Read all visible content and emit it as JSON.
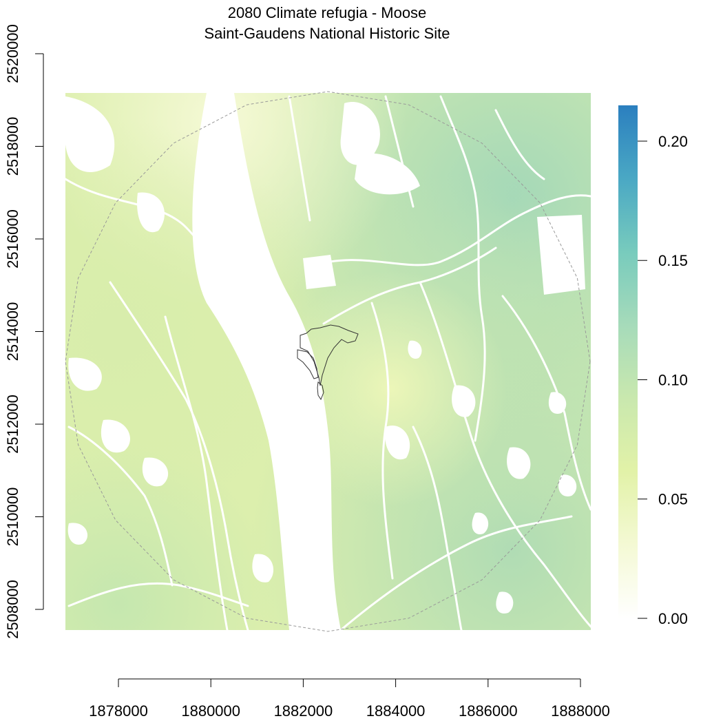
{
  "title": "2080 Climate refugia - Moose",
  "subtitle": "Saint-Gaudens National Historic Site",
  "x_axis": {
    "min": 1877000,
    "max": 1888000,
    "ticks": [
      {
        "value": 1878000,
        "label": "1878000"
      },
      {
        "value": 1880000,
        "label": "1880000"
      },
      {
        "value": 1882000,
        "label": "1882000"
      },
      {
        "value": 1884000,
        "label": "1884000"
      },
      {
        "value": 1886000,
        "label": "1886000"
      },
      {
        "value": 1888000,
        "label": "1888000"
      }
    ]
  },
  "y_axis": {
    "min": 2507500,
    "max": 2519100,
    "ticks": [
      {
        "value": 2508000,
        "label": "2508000"
      },
      {
        "value": 2510000,
        "label": "2510000"
      },
      {
        "value": 2512000,
        "label": "2512000"
      },
      {
        "value": 2514000,
        "label": "2514000"
      },
      {
        "value": 2516000,
        "label": "2516000"
      },
      {
        "value": 2518000,
        "label": "2518000"
      },
      {
        "value": 2520000,
        "label": "2520000"
      }
    ]
  },
  "legend": {
    "min": 0.0,
    "max": 0.215,
    "ticks": [
      {
        "value": 0.0,
        "label": "0.00"
      },
      {
        "value": 0.05,
        "label": "0.05"
      },
      {
        "value": 0.1,
        "label": "0.10"
      },
      {
        "value": 0.15,
        "label": "0.15"
      },
      {
        "value": 0.2,
        "label": "0.20"
      }
    ],
    "gradient": [
      "#ffffff",
      "#f4f9d4",
      "#e2f2a8",
      "#c9e8ae",
      "#a6dbba",
      "#78cbbd",
      "#4aa8c4",
      "#2b7fbf"
    ]
  },
  "colors": {
    "base": "#dcefad",
    "west": "#e6f2b0",
    "northwest": "#f1f7c8",
    "east": "#b8e0b3",
    "northeast": "#a4d8b8",
    "southeast": "#b0dcb4",
    "southwest": "#cfeaac",
    "center": "#e9f5b3"
  },
  "site": {
    "name": "park-boundary"
  }
}
